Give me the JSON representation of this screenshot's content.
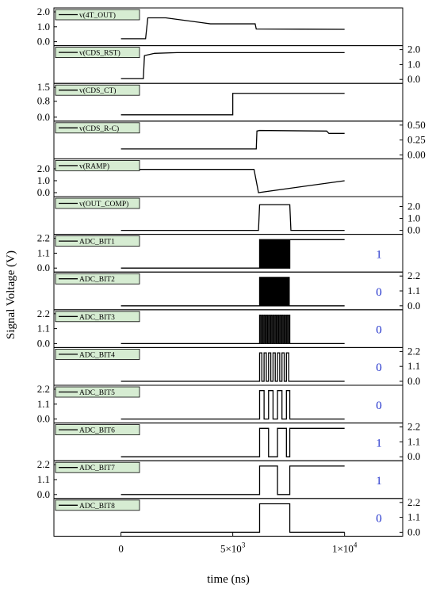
{
  "chart_data": {
    "type": "line",
    "xlabel": "time (ns)",
    "ylabel": "Signal Voltage (V)",
    "x_range": [
      -3000,
      12600
    ],
    "x_ticks": [
      0,
      5000,
      10000
    ],
    "x_tick_labels": [
      {
        "base": "0",
        "exp": ""
      },
      {
        "base": "5×10",
        "exp": "3"
      },
      {
        "base": "1×10",
        "exp": "4"
      }
    ],
    "panels": [
      {
        "name": "v(4T_OUT)",
        "side": "left",
        "ylim": [
          0,
          2.0
        ],
        "ticks": [
          0.0,
          1.0,
          2.0
        ],
        "tick_labels": [
          "0.0",
          "1.0",
          "2.0"
        ],
        "points": [
          [
            0,
            0.2
          ],
          [
            1100,
            0.2
          ],
          [
            1200,
            1.6
          ],
          [
            2000,
            1.6
          ],
          [
            4000,
            1.2
          ],
          [
            6000,
            1.2
          ],
          [
            6050,
            0.85
          ],
          [
            10000,
            0.83
          ]
        ]
      },
      {
        "name": "v(CDS_RST)",
        "side": "right",
        "ylim": [
          0,
          2.0
        ],
        "ticks": [
          0.0,
          1.0,
          2.0
        ],
        "tick_labels": [
          "0.0",
          "1.0",
          "2.0"
        ],
        "points": [
          [
            0,
            0.05
          ],
          [
            1000,
            0.05
          ],
          [
            1050,
            1.6
          ],
          [
            1500,
            1.75
          ],
          [
            2500,
            1.8
          ],
          [
            10000,
            1.8
          ]
        ]
      },
      {
        "name": "v(CDS_CT)",
        "side": "left",
        "ylim": [
          0,
          1.5
        ],
        "ticks": [
          0.0,
          0.8,
          1.5
        ],
        "tick_labels": [
          "0.0",
          "0.8",
          "1.5"
        ],
        "points": [
          [
            0,
            0.12
          ],
          [
            5000,
            0.12
          ],
          [
            5000,
            1.2
          ],
          [
            10000,
            1.2
          ]
        ]
      },
      {
        "name": "v(CDS_R-C)",
        "side": "right",
        "ylim": [
          0,
          0.5
        ],
        "ticks": [
          0.0,
          0.25,
          0.5
        ],
        "tick_labels": [
          "0.00",
          "0.25",
          "0.50"
        ],
        "points": [
          [
            0,
            0.1
          ],
          [
            6050,
            0.1
          ],
          [
            6080,
            0.4
          ],
          [
            6200,
            0.41
          ],
          [
            9200,
            0.4
          ],
          [
            9300,
            0.36
          ],
          [
            10000,
            0.36
          ]
        ]
      },
      {
        "name": "v(RAMP)",
        "side": "left",
        "ylim": [
          0,
          2.5
        ],
        "ticks": [
          0.0,
          1.0,
          2.0
        ],
        "tick_labels": [
          "0.0",
          "1.0",
          "2.0"
        ],
        "points": [
          [
            0,
            1.95
          ],
          [
            5950,
            1.95
          ],
          [
            6150,
            0.0
          ],
          [
            10000,
            1.0
          ]
        ]
      },
      {
        "name": "v(OUT_COMP)",
        "side": "right",
        "ylim": [
          0,
          2.5
        ],
        "ticks": [
          0.0,
          1.0,
          2.0
        ],
        "tick_labels": [
          "0.0",
          "1.0",
          "2.0"
        ],
        "points": [
          [
            0,
            0.0
          ],
          [
            6150,
            0.0
          ],
          [
            6200,
            2.15
          ],
          [
            7550,
            2.15
          ],
          [
            7600,
            0.0
          ],
          [
            10000,
            0.0
          ]
        ]
      },
      {
        "name": "ADC_BIT1",
        "side": "left",
        "ylim": [
          0,
          2.2
        ],
        "ticks": [
          0.0,
          1.1,
          2.2
        ],
        "tick_labels": [
          "0.0",
          "1.1",
          "2.2"
        ],
        "bit": "1",
        "pattern": {
          "hi": 2.1,
          "lo": 0.0,
          "period": 25,
          "start": 6200,
          "end": 7550,
          "final": 2.1
        }
      },
      {
        "name": "ADC_BIT2",
        "side": "right",
        "ylim": [
          0,
          2.2
        ],
        "ticks": [
          0.0,
          1.1,
          2.2
        ],
        "tick_labels": [
          "0.0",
          "1.1",
          "2.2"
        ],
        "bit": "0",
        "pattern": {
          "hi": 2.1,
          "lo": 0.0,
          "period": 50,
          "start": 6200,
          "end": 7550,
          "final": 0.0
        }
      },
      {
        "name": "ADC_BIT3",
        "side": "left",
        "ylim": [
          0,
          2.2
        ],
        "ticks": [
          0.0,
          1.1,
          2.2
        ],
        "tick_labels": [
          "0.0",
          "1.1",
          "2.2"
        ],
        "bit": "0",
        "pattern": {
          "hi": 2.1,
          "lo": 0.0,
          "period": 100,
          "start": 6200,
          "end": 7550,
          "final": 0.0
        }
      },
      {
        "name": "ADC_BIT4",
        "side": "right",
        "ylim": [
          0,
          2.2
        ],
        "ticks": [
          0.0,
          1.1,
          2.2
        ],
        "tick_labels": [
          "0.0",
          "1.1",
          "2.2"
        ],
        "bit": "0",
        "pattern": {
          "hi": 2.1,
          "lo": 0.0,
          "period": 200,
          "start": 6200,
          "end": 7550,
          "final": 0.0
        }
      },
      {
        "name": "ADC_BIT5",
        "side": "left",
        "ylim": [
          0,
          2.2
        ],
        "ticks": [
          0.0,
          1.1,
          2.2
        ],
        "tick_labels": [
          "0.0",
          "1.1",
          "2.2"
        ],
        "bit": "0",
        "pattern": {
          "hi": 2.1,
          "lo": 0.0,
          "period": 400,
          "start": 6200,
          "end": 7550,
          "final": 0.0
        }
      },
      {
        "name": "ADC_BIT6",
        "side": "right",
        "ylim": [
          0,
          2.2
        ],
        "ticks": [
          0.0,
          1.1,
          2.2
        ],
        "tick_labels": [
          "0.0",
          "1.1",
          "2.2"
        ],
        "bit": "1",
        "pattern": {
          "hi": 2.1,
          "lo": 0.0,
          "period": 800,
          "start": 6200,
          "end": 7550,
          "final": 2.1
        }
      },
      {
        "name": "ADC_BIT7",
        "side": "left",
        "ylim": [
          0,
          2.2
        ],
        "ticks": [
          0.0,
          1.1,
          2.2
        ],
        "tick_labels": [
          "0.0",
          "1.1",
          "2.2"
        ],
        "bit": "1",
        "pattern": {
          "hi": 2.1,
          "lo": 0.0,
          "period": 1600,
          "start": 6200,
          "end": 7550,
          "final": 2.1
        }
      },
      {
        "name": "ADC_BIT8",
        "side": "right",
        "ylim": [
          0,
          2.2
        ],
        "ticks": [
          0.0,
          1.1,
          2.2
        ],
        "tick_labels": [
          "0.0",
          "1.1",
          "2.2"
        ],
        "bit": "0",
        "pattern": {
          "hi": 2.1,
          "lo": 0.0,
          "period": 3200,
          "start": 6200,
          "end": 7550,
          "final": 0.0
        }
      }
    ],
    "colors": {
      "trace": "#000000",
      "legend_fill": "#d6ecd2",
      "bit_value": "#2233cc"
    }
  }
}
